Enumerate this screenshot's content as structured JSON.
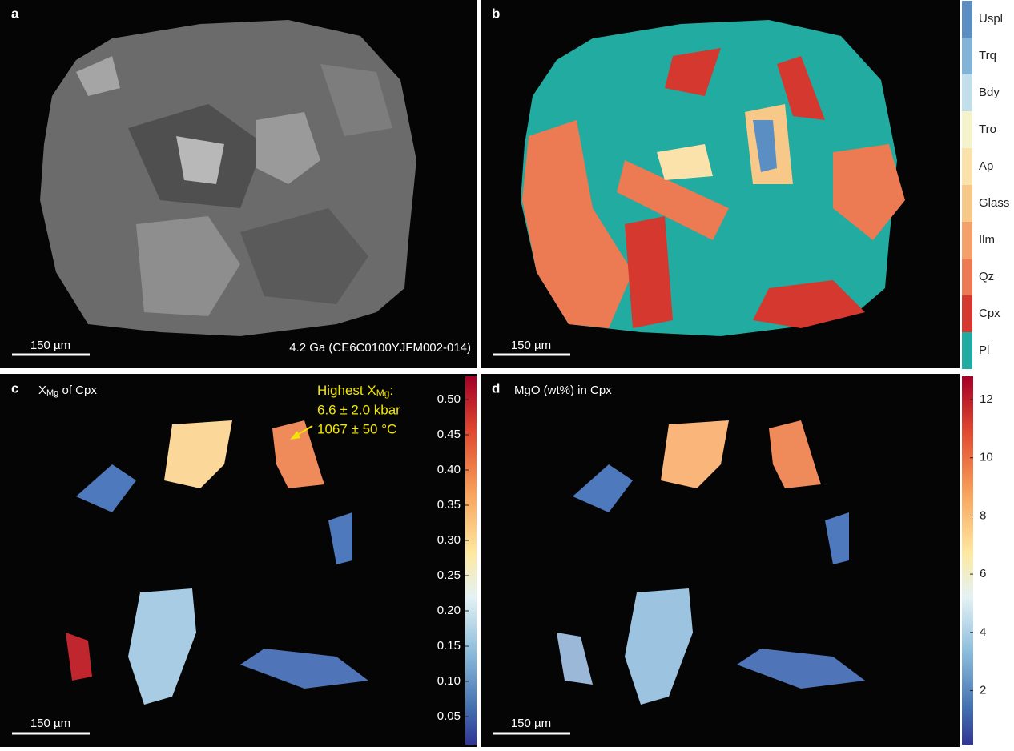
{
  "panels": [
    {
      "label": "a",
      "scale_bar": "150 µm",
      "caption": "4.2 Ga (CE6C0100YJFM002-014)"
    },
    {
      "label": "b",
      "scale_bar": "150 µm",
      "legend": [
        {
          "name": "Uspl",
          "color": "#5b8fc4"
        },
        {
          "name": "Trq",
          "color": "#82b3d9"
        },
        {
          "name": "Bdy",
          "color": "#c3deeb"
        },
        {
          "name": "Tro",
          "color": "#f5f3cc"
        },
        {
          "name": "Ap",
          "color": "#fbe2aa"
        },
        {
          "name": "Glass",
          "color": "#f8c888"
        },
        {
          "name": "Ilm",
          "color": "#f4a06a"
        },
        {
          "name": "Qz",
          "color": "#ec7a52"
        },
        {
          "name": "Cpx",
          "color": "#d4382e"
        },
        {
          "name": "Pl",
          "color": "#22aba0"
        }
      ]
    },
    {
      "label": "c",
      "scale_bar": "150 µm",
      "title": {
        "symbol": "X",
        "sub": "Mg",
        "rest": " of Cpx"
      },
      "annotation": {
        "line1": {
          "text": "Highest X",
          "sub": "Mg",
          "tail": ":"
        },
        "line2": "6.6 ± 2.0 kbar",
        "line3": "1067 ± 50 °C"
      },
      "colorbar": {
        "ticks": [
          "0.50",
          "0.45",
          "0.40",
          "0.35",
          "0.30",
          "0.25",
          "0.20",
          "0.15",
          "0.10",
          "0.05"
        ]
      }
    },
    {
      "label": "d",
      "scale_bar": "150 µm",
      "title": "MgO (wt%) in Cpx",
      "colorbar": {
        "ticks": [
          "12",
          "10",
          "8",
          "6",
          "4",
          "2"
        ]
      }
    }
  ]
}
